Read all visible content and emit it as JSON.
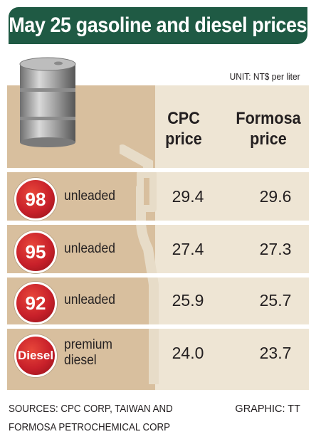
{
  "title": "May 25 gasoline and diesel prices",
  "unit": "UNIT: NT$ per liter",
  "colors": {
    "title_bg": "#1f5a44",
    "badge_red": "#c8202a",
    "panel_light": "#eee5d4",
    "panel_tan": "#d8bf9e"
  },
  "chart_data": {
    "type": "table",
    "columns": [
      "CPC price",
      "Formosa price"
    ],
    "column_headers": [
      {
        "line1": "CPC",
        "line2": "price"
      },
      {
        "line1": "Formosa",
        "line2": "price"
      }
    ],
    "rows": [
      {
        "badge": "98",
        "label_line1": "unleaded",
        "label_line2": "",
        "cpc": "29.4",
        "formosa": "29.6"
      },
      {
        "badge": "95",
        "label_line1": "unleaded",
        "label_line2": "",
        "cpc": "27.4",
        "formosa": "27.3"
      },
      {
        "badge": "92",
        "label_line1": "unleaded",
        "label_line2": "",
        "cpc": "25.9",
        "formosa": "25.7"
      },
      {
        "badge": "Diesel",
        "label_line1": "premium",
        "label_line2": "diesel",
        "cpc": "24.0",
        "formosa": "23.7"
      }
    ]
  },
  "sources_line1": "SOURCES: CPC CORP, TAIWAN AND",
  "sources_line2": "FORMOSA PETROCHEMICAL CORP",
  "graphic_credit": "GRAPHIC: TT",
  "icons": [
    "oil-barrel-icon",
    "fuel-nozzle-icon"
  ]
}
